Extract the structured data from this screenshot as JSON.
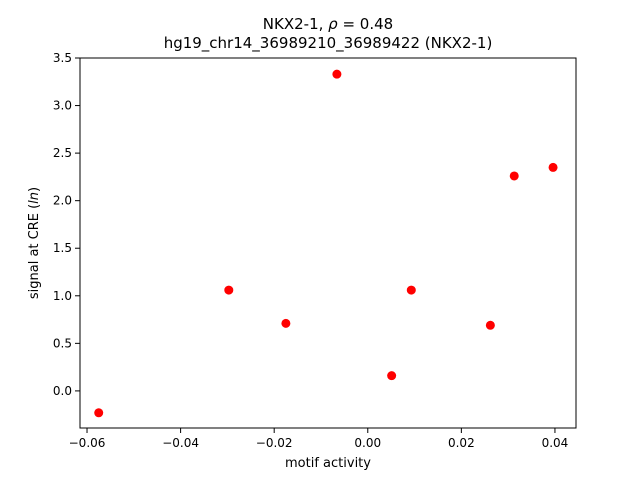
{
  "chart_data": {
    "type": "scatter",
    "title_line1_prefix": "NKX2-1, ",
    "title_line1_rho": "ρ",
    "title_line1_suffix": " = 0.48",
    "title_line2": "hg19_chr14_36989210_36989422 (NKX2-1)",
    "xlabel": "motif activity",
    "ylabel_prefix": "signal at CRE (",
    "ylabel_italic": "ln",
    "ylabel_suffix": ")",
    "xlim": [
      -0.0615,
      0.0445
    ],
    "ylim": [
      -0.39,
      3.5
    ],
    "xticks": [
      -0.06,
      -0.04,
      -0.02,
      0.0,
      0.02,
      0.04
    ],
    "xtick_labels": [
      "−0.06",
      "−0.04",
      "−0.02",
      "0.00",
      "0.02",
      "0.04"
    ],
    "yticks": [
      0.0,
      0.5,
      1.0,
      1.5,
      2.0,
      2.5,
      3.0,
      3.5
    ],
    "ytick_labels": [
      "0.0",
      "0.5",
      "1.0",
      "1.5",
      "2.0",
      "2.5",
      "3.0",
      "3.5"
    ],
    "grid": false,
    "marker_color": "#ff0000",
    "points": [
      {
        "x": -0.0575,
        "y": -0.23
      },
      {
        "x": -0.0297,
        "y": 1.06
      },
      {
        "x": -0.0175,
        "y": 0.71
      },
      {
        "x": -0.0066,
        "y": 3.33
      },
      {
        "x": 0.0051,
        "y": 0.16
      },
      {
        "x": 0.0093,
        "y": 1.06
      },
      {
        "x": 0.0262,
        "y": 0.69
      },
      {
        "x": 0.0313,
        "y": 2.26
      },
      {
        "x": 0.0396,
        "y": 2.35
      }
    ]
  }
}
